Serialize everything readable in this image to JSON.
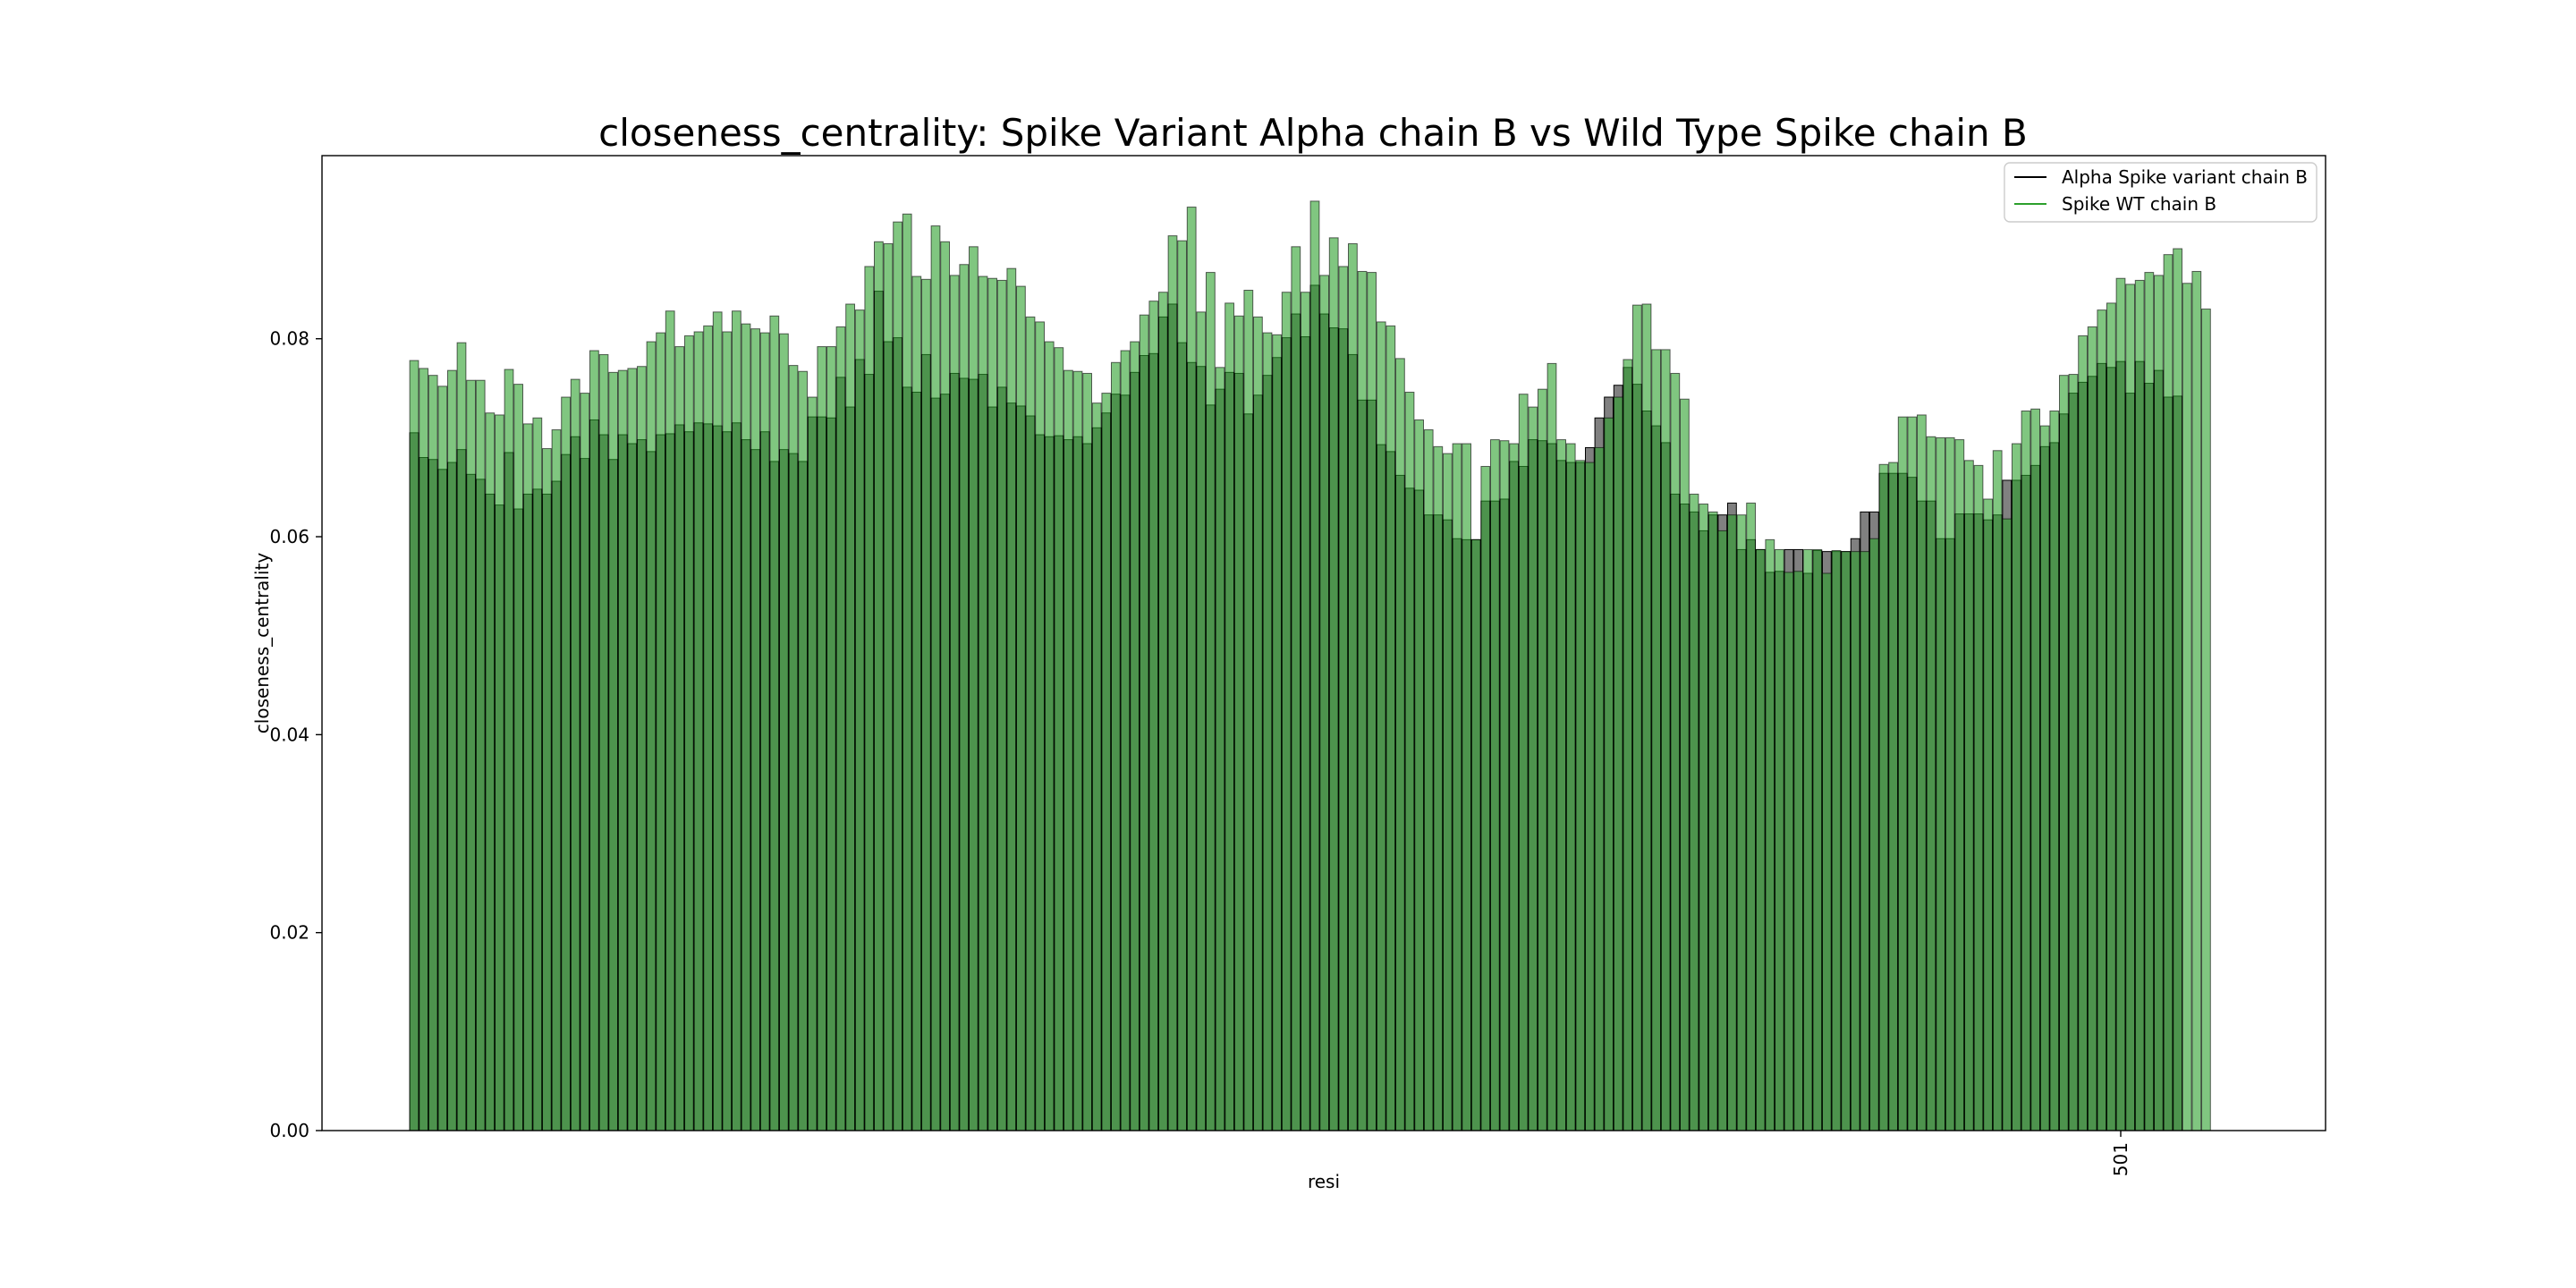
{
  "chart_data": {
    "type": "bar",
    "title": "closeness_centrality: Spike Variant Alpha chain B vs Wild Type Spike chain B",
    "xlabel": "resi",
    "ylabel": "closeness_centrality",
    "ylim": [
      0,
      0.0985
    ],
    "yticks": [
      "0.00",
      "0.02",
      "0.04",
      "0.06",
      "0.08"
    ],
    "x_tick_labels": [
      {
        "index": 180,
        "label": "501"
      }
    ],
    "grid": false,
    "legend_position": "top-right",
    "series": [
      {
        "name": "Alpha Spike variant chain B",
        "color": "#808080",
        "edge": "#000000",
        "values": [
          0.0705,
          0.068,
          0.0678,
          0.0668,
          0.0675,
          0.0688,
          0.0663,
          0.0658,
          0.0643,
          0.0632,
          0.0685,
          0.0628,
          0.0643,
          0.0648,
          0.0643,
          0.0656,
          0.0683,
          0.0701,
          0.0679,
          0.0718,
          0.0703,
          0.0678,
          0.0703,
          0.0694,
          0.0698,
          0.0686,
          0.0703,
          0.0704,
          0.0713,
          0.0706,
          0.0715,
          0.0714,
          0.0712,
          0.0706,
          0.0715,
          0.0698,
          0.0688,
          0.0706,
          0.0676,
          0.0688,
          0.0684,
          0.0676,
          0.0721,
          0.0721,
          0.072,
          0.0761,
          0.0731,
          0.0779,
          0.0764,
          0.0848,
          0.0797,
          0.0801,
          0.0751,
          0.0746,
          0.0784,
          0.074,
          0.0744,
          0.0765,
          0.076,
          0.0759,
          0.0764,
          0.0731,
          0.0751,
          0.0735,
          0.0732,
          0.0722,
          0.0703,
          0.0701,
          0.0702,
          0.0698,
          0.0701,
          0.0694,
          0.071,
          0.0725,
          0.0744,
          0.0743,
          0.0766,
          0.0783,
          0.0785,
          0.0822,
          0.0835,
          0.0796,
          0.0776,
          0.0772,
          0.0733,
          0.0749,
          0.0766,
          0.0765,
          0.0724,
          0.0743,
          0.0763,
          0.0781,
          0.0801,
          0.0825,
          0.0802,
          0.0854,
          0.0825,
          0.0811,
          0.081,
          0.0784,
          0.0738,
          0.0738,
          0.0693,
          0.0686,
          0.0662,
          0.0649,
          0.0647,
          0.0622,
          0.0622,
          0.0617,
          0.0598,
          0.0597,
          0.0597,
          0.0636,
          0.0636,
          0.0638,
          0.0676,
          0.0671,
          0.0698,
          0.0697,
          0.0694,
          0.0677,
          0.0675,
          0.0675,
          0.069,
          0.072,
          0.0741,
          0.0753,
          0.0771,
          0.0754,
          0.0727,
          0.0712,
          0.0695,
          0.0643,
          0.0633,
          0.0625,
          0.0606,
          0.0622,
          0.0622,
          0.0634,
          0.0587,
          0.0597,
          0.0587,
          0.0564,
          0.0565,
          0.0587,
          0.0587,
          0.0563,
          0.0586,
          0.0585,
          0.0585,
          0.0585,
          0.0598,
          0.0625,
          0.0625,
          0.0664,
          0.0664,
          0.0664,
          0.066,
          0.0636,
          0.0636,
          0.0598,
          0.0598,
          0.0623,
          0.0623,
          0.0623,
          0.0617,
          0.0622,
          0.0657,
          0.0657,
          0.0662,
          0.0672,
          0.0691,
          0.0695,
          0.0724,
          0.0745,
          0.0756,
          0.0762,
          0.0775,
          0.0771,
          0.0777,
          0.0745,
          0.0777,
          0.0755,
          0.0768,
          0.0741,
          0.0742
        ]
      },
      {
        "name": "Spike WT chain B",
        "color": "#2ca02c",
        "edge": "#000000",
        "values": [
          0.0778,
          0.077,
          0.0763,
          0.0752,
          0.0768,
          0.0796,
          0.0758,
          0.0758,
          0.0725,
          0.0723,
          0.0769,
          0.0754,
          0.0714,
          0.072,
          0.0689,
          0.0708,
          0.0741,
          0.0759,
          0.0745,
          0.0788,
          0.0784,
          0.0766,
          0.0768,
          0.077,
          0.0772,
          0.0797,
          0.0806,
          0.0828,
          0.0792,
          0.0803,
          0.0807,
          0.0813,
          0.0827,
          0.0807,
          0.0828,
          0.0815,
          0.081,
          0.0806,
          0.0823,
          0.0805,
          0.0773,
          0.0767,
          0.0741,
          0.0792,
          0.0792,
          0.0812,
          0.0835,
          0.0829,
          0.0873,
          0.0898,
          0.0896,
          0.0918,
          0.0926,
          0.0863,
          0.086,
          0.0914,
          0.0898,
          0.0864,
          0.0875,
          0.0893,
          0.0863,
          0.0861,
          0.0859,
          0.0871,
          0.0853,
          0.0822,
          0.0817,
          0.0797,
          0.0791,
          0.0768,
          0.0767,
          0.0765,
          0.0735,
          0.0745,
          0.0776,
          0.0788,
          0.0797,
          0.0824,
          0.0838,
          0.0847,
          0.0904,
          0.0899,
          0.0933,
          0.0827,
          0.0867,
          0.0771,
          0.0836,
          0.0823,
          0.0849,
          0.0822,
          0.0806,
          0.0804,
          0.0847,
          0.0893,
          0.0847,
          0.0939,
          0.0864,
          0.0902,
          0.0873,
          0.0896,
          0.0868,
          0.0867,
          0.0817,
          0.0813,
          0.078,
          0.0746,
          0.0718,
          0.0708,
          0.0691,
          0.0684,
          0.0694,
          0.0694,
          0.0597,
          0.0671,
          0.0698,
          0.0697,
          0.0694,
          0.0744,
          0.0731,
          0.0749,
          0.0775,
          0.0698,
          0.0694,
          0.0677,
          0.0675,
          0.069,
          0.072,
          0.0741,
          0.0779,
          0.0834,
          0.0835,
          0.0789,
          0.0789,
          0.0765,
          0.0739,
          0.0643,
          0.0633,
          0.0625,
          0.0606,
          0.0622,
          0.0622,
          0.0634,
          0.0587,
          0.0597,
          0.0587,
          0.0564,
          0.0565,
          0.0587,
          0.0587,
          0.0563,
          0.0586,
          0.0585,
          0.0585,
          0.0585,
          0.0598,
          0.0673,
          0.0675,
          0.0721,
          0.0721,
          0.0723,
          0.0701,
          0.07,
          0.07,
          0.0698,
          0.0677,
          0.0672,
          0.0638,
          0.0687,
          0.0618,
          0.0694,
          0.0727,
          0.0729,
          0.0712,
          0.0727,
          0.0763,
          0.0764,
          0.0803,
          0.0812,
          0.0829,
          0.0836,
          0.0861,
          0.0855,
          0.0859,
          0.0867,
          0.0864,
          0.0885,
          0.0891,
          0.0856,
          0.0868,
          0.083
        ]
      }
    ]
  }
}
